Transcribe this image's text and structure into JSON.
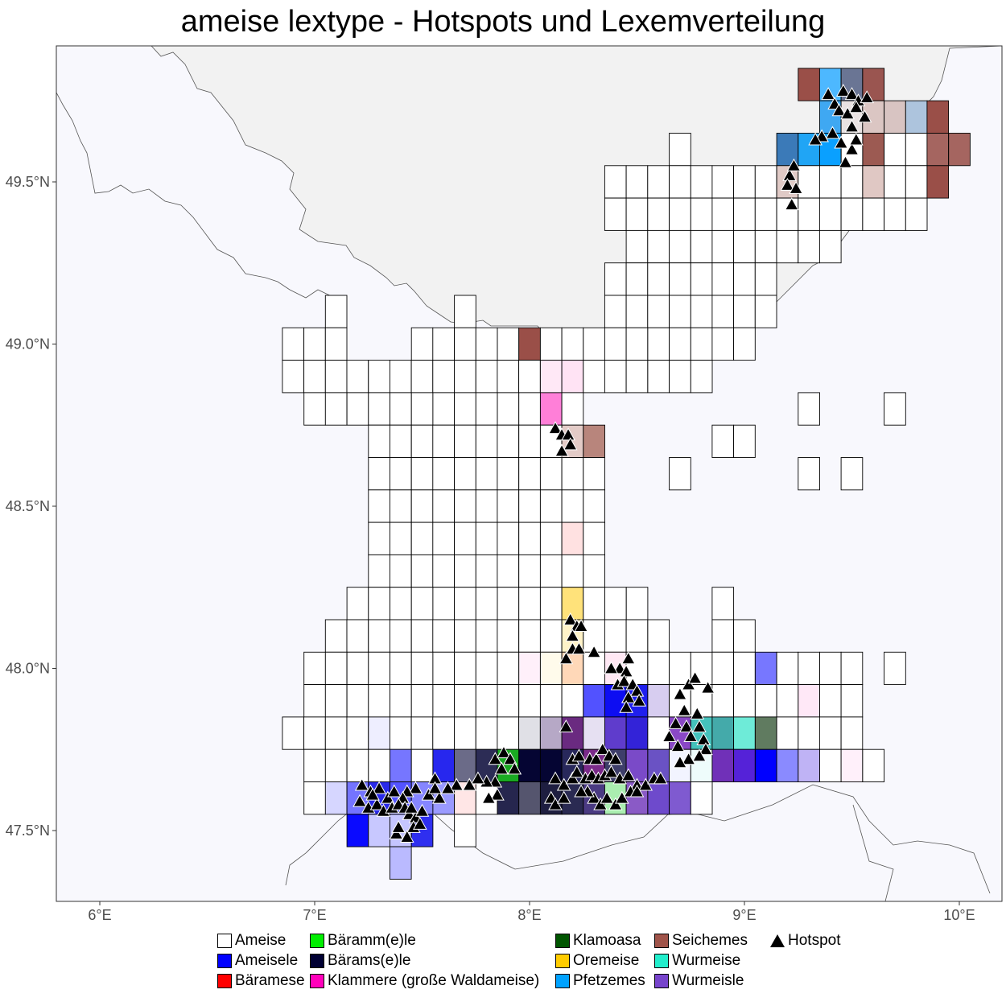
{
  "chart_data": {
    "type": "heatmap",
    "title": "ameise lextype - Hotspots und Lexemverteilung",
    "x_ticks": [
      "6°E",
      "7°E",
      "8°E",
      "9°E",
      "10°E"
    ],
    "x_tick_values": [
      6,
      7,
      8,
      9,
      10
    ],
    "y_ticks": [
      "47.5°N",
      "48.0°N",
      "48.5°N",
      "49.0°N",
      "49.5°N"
    ],
    "y_tick_values": [
      47.5,
      48.0,
      48.5,
      49.0,
      49.5
    ],
    "xlim": [
      5.8,
      10.25
    ],
    "ylim": [
      47.28,
      49.93
    ],
    "cell_size_deg": {
      "lon": 0.1,
      "lat": 0.1
    },
    "background_colors": {
      "land": "#f2f2f2",
      "region": "#f8f8fd"
    },
    "legend": [
      {
        "label": "Ameise",
        "color": "#ffffff"
      },
      {
        "label": "Ameisele",
        "color": "#0000ff"
      },
      {
        "label": "Bäramese",
        "color": "#ff0000"
      },
      {
        "label": "Bäramm(e)le",
        "color": "#00ee00"
      },
      {
        "label": "Bärams(e)le",
        "color": "#000033"
      },
      {
        "label": "Klammere (große Waldameise)",
        "color": "#ff00bb"
      },
      {
        "label": "Klamoasa",
        "color": "#005500"
      },
      {
        "label": "Oremeise",
        "color": "#ffcc00"
      },
      {
        "label": "Pfetzemes",
        "color": "#00a2ff"
      },
      {
        "label": "Seichemes",
        "color": "#a0544a"
      },
      {
        "label": "Wurmeise",
        "color": "#22eecc"
      },
      {
        "label": "Wurmeisle",
        "color": "#7744cc"
      },
      {
        "label": "Hotspot",
        "color": "#000000",
        "symbol": "triangle"
      }
    ],
    "cell_rows": [
      {
        "lat": 49.8,
        "lon_start": 9.25,
        "colors": [
          "#9a4f48",
          "#4db8ff",
          "#6a7594",
          "#9a5550"
        ]
      },
      {
        "lat": 49.7,
        "lon_start": 9.35,
        "colors": [
          "#3fa8f2",
          "#e9e2e2",
          "#dbc6c3",
          "#d8c4c2",
          "#adc4dd",
          "#9a4f48"
        ]
      },
      {
        "lat": 49.6,
        "lon_start": 8.65,
        "colors": [
          "#ffffff"
        ]
      },
      {
        "lat": 49.6,
        "lon_start": 9.15,
        "colors": [
          "#3b7ab8",
          "#20a5f5",
          "#0aa0ff",
          "#ffffff",
          "#9c5a52",
          "#ffffff",
          "#ffffff",
          "#a56560",
          "#a56560"
        ]
      },
      {
        "lat": 49.5,
        "lon_start": 8.35,
        "colors": [
          "#ffffff",
          "#ffffff",
          "#ffffff",
          "#ffffff",
          "#ffffff",
          "#ffffff",
          "#ffffff",
          "#ffffff",
          "#e0cac6",
          "#ffffff",
          "#ffffff",
          "#ffffff",
          "#e0c8c4",
          "#ffffff",
          "#ffffff",
          "#9a4f48"
        ]
      },
      {
        "lat": 49.4,
        "lon_start": 8.35,
        "colors": [
          "#ffffff",
          "#ffffff",
          "#ffffff",
          "#ffffff",
          "#ffffff",
          "#ffffff",
          "#ffffff",
          "#ffffff",
          "#ffffff",
          "#ffffff",
          "#ffffff",
          "#ffffff",
          "#ffffff",
          "#ffffff",
          "#ffffff"
        ]
      },
      {
        "lat": 49.3,
        "lon_start": 8.45,
        "colors": [
          "#ffffff",
          "#ffffff",
          "#ffffff",
          "#ffffff",
          "#ffffff",
          "#ffffff",
          "#ffffff",
          "#ffffff",
          "#ffffff",
          "#ffffff"
        ]
      },
      {
        "lat": 49.2,
        "lon_start": 8.35,
        "colors": [
          "#ffffff",
          "#ffffff",
          "#ffffff",
          "#ffffff",
          "#ffffff",
          "#ffffff",
          "#ffffff",
          "#ffffff"
        ]
      },
      {
        "lat": 49.1,
        "lon_start": 7.05,
        "colors": [
          "#ffffff"
        ]
      },
      {
        "lat": 49.1,
        "lon_start": 7.65,
        "colors": [
          "#ffffff"
        ]
      },
      {
        "lat": 49.1,
        "lon_start": 8.35,
        "colors": [
          "#ffffff",
          "#ffffff",
          "#ffffff",
          "#ffffff",
          "#ffffff",
          "#ffffff",
          "#ffffff",
          "#ffffff"
        ]
      },
      {
        "lat": 49.0,
        "lon_start": 6.85,
        "colors": [
          "#ffffff",
          "#ffffff",
          "#ffffff"
        ]
      },
      {
        "lat": 49.0,
        "lon_start": 7.45,
        "colors": [
          "#ffffff",
          "#ffffff",
          "#ffffff",
          "#ffffff",
          "#ffffff",
          "#9a4f48",
          "#ffffff",
          "#ffffff",
          "#ffffff",
          "#ffffff",
          "#ffffff",
          "#ffffff",
          "#ffffff",
          "#ffffff",
          "#ffffff",
          "#ffffff"
        ]
      },
      {
        "lat": 48.9,
        "lon_start": 6.85,
        "colors": [
          "#ffffff",
          "#ffffff",
          "#ffffff",
          "#ffffff",
          "#ffffff",
          "#ffffff",
          "#ffffff",
          "#ffffff",
          "#ffffff",
          "#ffffff",
          "#ffffff",
          "#ffffff",
          "#ffe8f6",
          "#ffe3f4",
          "#ffffff",
          "#ffffff",
          "#ffffff",
          "#ffffff",
          "#ffffff",
          "#ffffff"
        ]
      },
      {
        "lat": 48.8,
        "lon_start": 6.95,
        "colors": [
          "#ffffff",
          "#ffffff",
          "#ffffff",
          "#ffffff",
          "#ffffff",
          "#ffffff",
          "#ffffff",
          "#ffffff",
          "#ffffff",
          "#ffffff",
          "#ffffff",
          "#ff7fd8",
          "#ffffff"
        ]
      },
      {
        "lat": 48.8,
        "lon_start": 9.25,
        "colors": [
          "#ffffff"
        ]
      },
      {
        "lat": 48.8,
        "lon_start": 9.65,
        "colors": [
          "#ffffff"
        ]
      },
      {
        "lat": 48.7,
        "lon_start": 7.25,
        "colors": [
          "#ffffff",
          "#ffffff",
          "#ffffff",
          "#ffffff",
          "#ffffff",
          "#ffffff",
          "#ffffff",
          "#ffffff",
          "#ffffff",
          "#e3cbc7",
          "#b8857c"
        ]
      },
      {
        "lat": 48.7,
        "lon_start": 8.85,
        "colors": [
          "#ffffff",
          "#ffffff"
        ]
      },
      {
        "lat": 48.6,
        "lon_start": 7.25,
        "colors": [
          "#ffffff",
          "#ffffff",
          "#ffffff",
          "#ffffff",
          "#ffffff",
          "#ffffff",
          "#ffffff",
          "#ffffff",
          "#ffffff",
          "#ffffff",
          "#ffffff"
        ]
      },
      {
        "lat": 48.6,
        "lon_start": 8.65,
        "colors": [
          "#ffffff"
        ]
      },
      {
        "lat": 48.6,
        "lon_start": 9.25,
        "colors": [
          "#ffffff"
        ]
      },
      {
        "lat": 48.6,
        "lon_start": 9.45,
        "colors": [
          "#ffffff"
        ]
      },
      {
        "lat": 48.5,
        "lon_start": 7.25,
        "colors": [
          "#ffffff",
          "#ffffff",
          "#ffffff",
          "#ffffff",
          "#ffffff",
          "#ffffff",
          "#ffffff",
          "#ffffff",
          "#ffffff",
          "#ffffff",
          "#ffffff"
        ]
      },
      {
        "lat": 48.4,
        "lon_start": 7.25,
        "colors": [
          "#ffffff",
          "#ffffff",
          "#ffffff",
          "#ffffff",
          "#ffffff",
          "#ffffff",
          "#ffffff",
          "#ffffff",
          "#ffffff",
          "#ffe1e1",
          "#ffffff"
        ]
      },
      {
        "lat": 48.3,
        "lon_start": 7.25,
        "colors": [
          "#ffffff",
          "#ffffff",
          "#ffffff",
          "#ffffff",
          "#ffffff",
          "#ffffff",
          "#ffffff",
          "#ffffff",
          "#ffffff",
          "#ffffff",
          "#ffffff"
        ]
      },
      {
        "lat": 48.2,
        "lon_start": 7.15,
        "colors": [
          "#ffffff",
          "#ffffff",
          "#ffffff",
          "#ffffff",
          "#ffffff",
          "#ffffff",
          "#ffffff",
          "#ffffff",
          "#ffffff",
          "#ffffff",
          "#ffe27a",
          "#ffffff",
          "#ffffff",
          "#ffffff"
        ]
      },
      {
        "lat": 48.2,
        "lon_start": 8.85,
        "colors": [
          "#ffffff"
        ]
      },
      {
        "lat": 48.1,
        "lon_start": 7.05,
        "colors": [
          "#ffffff",
          "#ffffff",
          "#ffffff",
          "#ffffff",
          "#ffffff",
          "#ffffff",
          "#ffffff",
          "#ffffff",
          "#ffffff",
          "#ffffff",
          "#ffffff",
          "#fff3c8",
          "#ffffff",
          "#ffffff",
          "#ffffff",
          "#ffffff"
        ]
      },
      {
        "lat": 48.1,
        "lon_start": 8.85,
        "colors": [
          "#ffffff",
          "#ffffff"
        ]
      },
      {
        "lat": 48.0,
        "lon_start": 6.95,
        "colors": [
          "#ffffff",
          "#ffffff",
          "#ffffff",
          "#ffffff",
          "#ffffff",
          "#ffffff",
          "#ffffff",
          "#ffffff",
          "#ffffff",
          "#ffffff",
          "#fff0fa",
          "#fffbeb",
          "#ffd8b8",
          "#ffffff",
          "#ffe8f4",
          "#ffffff",
          "#ffffff",
          "#ffffff",
          "#ffffff",
          "#ffffff",
          "#ffffff",
          "#7777ff",
          "#ffffff",
          "#ffffff",
          "#ffffff",
          "#ffffff"
        ]
      },
      {
        "lat": 48.0,
        "lon_start": 9.65,
        "colors": [
          "#ffffff"
        ]
      },
      {
        "lat": 47.9,
        "lon_start": 6.95,
        "colors": [
          "#ffffff",
          "#ffffff",
          "#ffffff",
          "#ffffff",
          "#ffffff",
          "#ffffff",
          "#ffffff",
          "#ffffff",
          "#ffffff",
          "#ffffff",
          "#ffffff",
          "#ffffff",
          "#ffffff",
          "#5252ff",
          "#0d0df2",
          "#1f1fee",
          "#d7cdf0",
          "#ffffff",
          "#ffffff",
          "#ffffff",
          "#ffffff",
          "#ffffff",
          "#ffffff",
          "#ffe8f7",
          "#ffffff",
          "#ffffff"
        ]
      },
      {
        "lat": 47.8,
        "lon_start": 6.85,
        "colors": [
          "#ffffff",
          "#ffffff",
          "#ffffff",
          "#ffffff",
          "#eeeeff",
          "#ffffff",
          "#ffffff",
          "#ffffff",
          "#ffffff",
          "#ffffff",
          "#ffffff",
          "#e0e0e6",
          "#b6a8c6",
          "#6a2a80",
          "#e6e0f2",
          "#5f3ccc",
          "#3323d8",
          "#ffffff",
          "#8a48c6",
          "#44c2bc",
          "#44aaaa",
          "#6eebd8",
          "#607b60",
          "#ffffff",
          "#ffffff",
          "#ffffff",
          "#ffffff"
        ]
      },
      {
        "lat": 47.7,
        "lon_start": 6.95,
        "colors": [
          "#ffffff",
          "#ffffff",
          "#ffffff",
          "#ffffff",
          "#7676ff",
          "#ffffff",
          "#2727ee",
          "#6b6b88",
          "#2c2c55",
          "#1aaa22",
          "#050533",
          "#050533",
          "#28285b",
          "#7b2b8a",
          "#3e3e6a",
          "#7a4ac8",
          "#6a52c4",
          "#f2f4ff",
          "#eefcfb",
          "#7030b8",
          "#5522d8",
          "#0000ff",
          "#8a8aff",
          "#bfb3f5",
          "#ffffff",
          "#fff0fa",
          "#ffffff"
        ]
      },
      {
        "lat": 47.6,
        "lon_start": 6.95,
        "colors": [
          "#ffffff",
          "#d6d6ff",
          "#7474ff",
          "#2a2ae8",
          "#5454ff",
          "#8686ff",
          "#9a9aff",
          "#ffe6e6",
          "#ffffff",
          "#26264e",
          "#55556e",
          "#1e1e40",
          "#2a2a52",
          "#4a3a82",
          "#aaeeb0",
          "#8a5ac6",
          "#6e4acc",
          "#7f5ad0",
          "#ffffff"
        ]
      },
      {
        "lat": 47.5,
        "lon_start": 7.15,
        "colors": [
          "#0a0aff",
          "#c8c8ff",
          "#c5c5ff",
          "#2f2ff0"
        ]
      },
      {
        "lat": 47.5,
        "lon_start": 7.65,
        "colors": [
          "#ffffff"
        ]
      },
      {
        "lat": 47.4,
        "lon_start": 7.35,
        "colors": [
          "#babaff"
        ]
      }
    ],
    "hotspots": [
      [
        9.39,
        49.77
      ],
      [
        9.42,
        49.74
      ],
      [
        9.46,
        49.78
      ],
      [
        9.5,
        49.77
      ],
      [
        9.53,
        49.75
      ],
      [
        9.57,
        49.76
      ],
      [
        9.44,
        49.72
      ],
      [
        9.48,
        49.71
      ],
      [
        9.52,
        49.73
      ],
      [
        9.56,
        49.7
      ],
      [
        9.5,
        49.67
      ],
      [
        9.41,
        49.65
      ],
      [
        9.36,
        49.64
      ],
      [
        9.33,
        49.63
      ],
      [
        9.45,
        49.62
      ],
      [
        9.5,
        49.6
      ],
      [
        9.52,
        49.63
      ],
      [
        9.47,
        49.56
      ],
      [
        9.21,
        49.52
      ],
      [
        9.23,
        49.55
      ],
      [
        9.2,
        49.49
      ],
      [
        9.24,
        49.48
      ],
      [
        9.22,
        49.43
      ],
      [
        8.12,
        48.74
      ],
      [
        8.15,
        48.72
      ],
      [
        8.18,
        48.72
      ],
      [
        8.19,
        48.69
      ],
      [
        8.15,
        48.67
      ],
      [
        8.19,
        48.15
      ],
      [
        8.22,
        48.13
      ],
      [
        8.2,
        48.1
      ],
      [
        8.24,
        48.13
      ],
      [
        8.2,
        48.06
      ],
      [
        8.23,
        48.06
      ],
      [
        8.17,
        48.03
      ],
      [
        8.3,
        48.05
      ],
      [
        8.42,
        48.0
      ],
      [
        8.46,
        48.03
      ],
      [
        8.45,
        47.99
      ],
      [
        8.38,
        48.0
      ],
      [
        8.41,
        47.95
      ],
      [
        8.44,
        47.96
      ],
      [
        8.48,
        47.95
      ],
      [
        8.5,
        47.93
      ],
      [
        8.46,
        47.91
      ],
      [
        8.51,
        47.9
      ],
      [
        8.45,
        47.88
      ],
      [
        8.74,
        47.95
      ],
      [
        8.77,
        47.97
      ],
      [
        8.83,
        47.94
      ],
      [
        8.7,
        47.92
      ],
      [
        8.72,
        47.87
      ],
      [
        8.68,
        47.83
      ],
      [
        8.73,
        47.82
      ],
      [
        8.78,
        47.86
      ],
      [
        8.79,
        47.82
      ],
      [
        8.75,
        47.79
      ],
      [
        8.81,
        47.78
      ],
      [
        8.65,
        47.79
      ],
      [
        8.69,
        47.76
      ],
      [
        8.82,
        47.75
      ],
      [
        8.79,
        47.73
      ],
      [
        8.74,
        47.72
      ],
      [
        8.7,
        47.71
      ],
      [
        8.17,
        47.82
      ],
      [
        8.2,
        47.72
      ],
      [
        8.23,
        47.73
      ],
      [
        8.28,
        47.72
      ],
      [
        8.31,
        47.72
      ],
      [
        8.34,
        47.75
      ],
      [
        8.37,
        47.73
      ],
      [
        8.4,
        47.72
      ],
      [
        8.12,
        47.66
      ],
      [
        8.16,
        47.64
      ],
      [
        8.2,
        47.66
      ],
      [
        8.22,
        47.68
      ],
      [
        8.26,
        47.66
      ],
      [
        8.29,
        47.67
      ],
      [
        8.32,
        47.66
      ],
      [
        8.35,
        47.67
      ],
      [
        8.38,
        47.68
      ],
      [
        8.42,
        47.66
      ],
      [
        8.46,
        47.67
      ],
      [
        8.5,
        47.64
      ],
      [
        8.54,
        47.64
      ],
      [
        8.58,
        47.66
      ],
      [
        8.61,
        47.66
      ],
      [
        8.1,
        47.6
      ],
      [
        8.12,
        47.58
      ],
      [
        8.16,
        47.6
      ],
      [
        8.3,
        47.6
      ],
      [
        8.33,
        47.58
      ],
      [
        8.36,
        47.6
      ],
      [
        8.4,
        47.58
      ],
      [
        8.43,
        47.6
      ],
      [
        8.47,
        47.62
      ],
      [
        8.5,
        47.62
      ],
      [
        8.27,
        47.62
      ],
      [
        8.24,
        47.62
      ],
      [
        7.84,
        47.72
      ],
      [
        7.88,
        47.74
      ],
      [
        7.91,
        47.72
      ],
      [
        7.87,
        47.69
      ],
      [
        7.93,
        47.69
      ],
      [
        7.84,
        47.65
      ],
      [
        7.8,
        47.65
      ],
      [
        7.76,
        47.66
      ],
      [
        7.72,
        47.64
      ],
      [
        7.66,
        47.64
      ],
      [
        7.62,
        47.63
      ],
      [
        7.85,
        47.61
      ],
      [
        7.81,
        47.6
      ],
      [
        7.56,
        47.66
      ],
      [
        7.58,
        47.6
      ],
      [
        7.53,
        47.61
      ],
      [
        7.56,
        47.63
      ],
      [
        7.47,
        47.63
      ],
      [
        7.43,
        47.62
      ],
      [
        7.22,
        47.64
      ],
      [
        7.26,
        47.62
      ],
      [
        7.3,
        47.63
      ],
      [
        7.34,
        47.6
      ],
      [
        7.37,
        47.62
      ],
      [
        7.41,
        47.6
      ],
      [
        7.21,
        47.59
      ],
      [
        7.25,
        47.57
      ],
      [
        7.29,
        47.58
      ],
      [
        7.32,
        47.56
      ],
      [
        7.36,
        47.57
      ],
      [
        7.39,
        47.58
      ],
      [
        7.42,
        47.57
      ],
      [
        7.44,
        47.55
      ],
      [
        7.47,
        47.54
      ],
      [
        7.5,
        47.56
      ],
      [
        7.46,
        47.51
      ],
      [
        7.49,
        47.52
      ],
      [
        7.43,
        47.48
      ],
      [
        7.38,
        47.49
      ],
      [
        7.39,
        47.51
      ],
      [
        7.27,
        47.61
      ],
      [
        7.45,
        47.57
      ]
    ]
  }
}
